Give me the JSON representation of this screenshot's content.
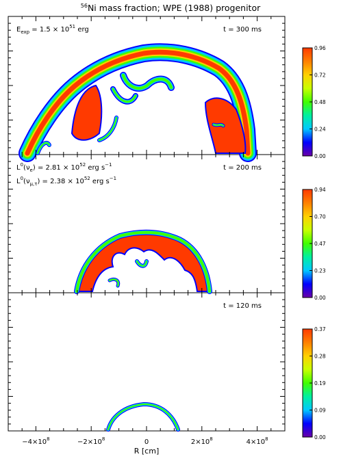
{
  "figure": {
    "title_sup": "56",
    "title_main": "Ni mass fraction; WPE (1988) progenitor",
    "xlabel": "R [cm]"
  },
  "x_axis": {
    "range": [
      -500000000,
      500000000
    ],
    "ticks": [
      {
        "value": -400000000,
        "base": "−4×10",
        "exp": "8"
      },
      {
        "value": -200000000,
        "base": "−2×10",
        "exp": "8"
      },
      {
        "value": 0,
        "base": "0",
        "exp": ""
      },
      {
        "value": 200000000,
        "base": "2×10",
        "exp": "8"
      },
      {
        "value": 400000000,
        "base": "4×10",
        "exp": "8"
      }
    ]
  },
  "colormap": [
    "#6a00a8",
    "#0000ff",
    "#00c8ff",
    "#00f0a0",
    "#40ff00",
    "#c8ff00",
    "#ffd000",
    "#ff8000",
    "#ff3a00"
  ],
  "chart_data": [
    {
      "type": "heatmap",
      "panel": "top",
      "time": "t = 300 ms",
      "annotations": [
        {
          "base": "E",
          "sub": "exp",
          "mid": " = 1.5 × 10",
          "sup": "51",
          "tail": " erg"
        }
      ],
      "colorbar_ticks": [
        "0.96",
        "0.72",
        "0.48",
        "0.24",
        "0.00"
      ],
      "colorbar_max": 0.96
    },
    {
      "type": "heatmap",
      "panel": "middle",
      "time": "t = 200 ms",
      "annotations": [
        {
          "base": "L",
          "sup1": "0",
          "mid": "(ν",
          "sub": "e",
          "tail": ")  = 2.81 × 10",
          "sup": "52",
          "tail2": " erg s",
          "sup2": "−1"
        },
        {
          "base": "L",
          "sup1": "0",
          "mid": "(ν",
          "sub": "μ,τ",
          "tail": ") = 2.38 × 10",
          "sup": "52",
          "tail2": " erg s",
          "sup2": "−1"
        }
      ],
      "colorbar_ticks": [
        "0.94",
        "0.70",
        "0.47",
        "0.23",
        "0.00"
      ],
      "colorbar_max": 0.94
    },
    {
      "type": "heatmap",
      "panel": "bottom",
      "time": "t = 120 ms",
      "annotations": [],
      "colorbar_ticks": [
        "0.37",
        "0.28",
        "0.19",
        "0.09",
        "0.00"
      ],
      "colorbar_max": 0.37
    }
  ]
}
